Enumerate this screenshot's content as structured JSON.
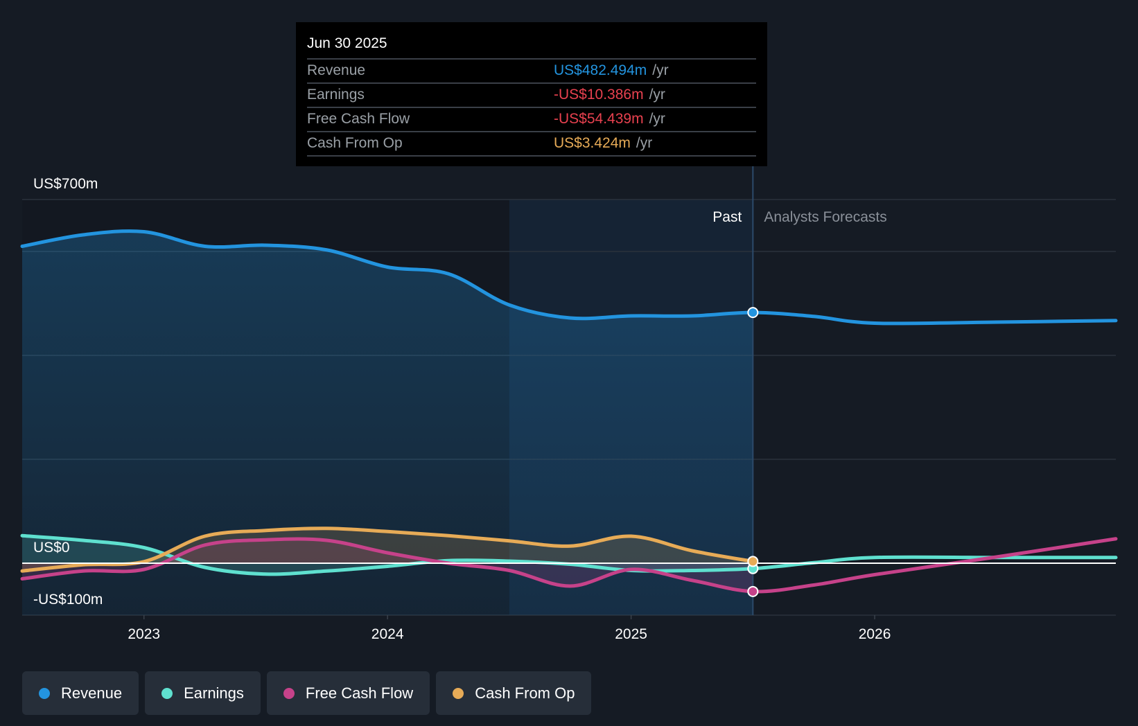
{
  "colors": {
    "revenue": "#2394df",
    "earnings": "#5fe0cf",
    "free_cash_flow": "#c6428a",
    "cash_from_op": "#e7ab57",
    "negative": "#e8414f",
    "background": "#151b24"
  },
  "tooltip": {
    "date": "Jun 30 2025",
    "rows": [
      {
        "label": "Revenue",
        "value": "US$482.494m",
        "unit": "/yr",
        "color": "#2394df"
      },
      {
        "label": "Earnings",
        "value": "-US$10.386m",
        "unit": "/yr",
        "color": "#e8414f"
      },
      {
        "label": "Free Cash Flow",
        "value": "-US$54.439m",
        "unit": "/yr",
        "color": "#e8414f"
      },
      {
        "label": "Cash From Op",
        "value": "US$3.424m",
        "unit": "/yr",
        "color": "#e7ab57"
      }
    ]
  },
  "legend": [
    {
      "label": "Revenue",
      "color": "#2394df"
    },
    {
      "label": "Earnings",
      "color": "#5fe0cf"
    },
    {
      "label": "Free Cash Flow",
      "color": "#c6428a"
    },
    {
      "label": "Cash From Op",
      "color": "#e7ab57"
    }
  ],
  "chart_data": {
    "type": "line",
    "title": "",
    "xlabel": "",
    "ylabel": "",
    "y_tick_labels": [
      "US$700m",
      "US$0",
      "-US$100m"
    ],
    "x_tick_labels": [
      "2023",
      "2024",
      "2025",
      "2026"
    ],
    "xlim": [
      2022.5,
      2026.99
    ],
    "ylim": [
      -100,
      700
    ],
    "grid": true,
    "legend_position": "bottom",
    "region_labels": {
      "past": "Past",
      "forecast": "Analysts Forecasts"
    },
    "past_end": 2025.5,
    "highlight_start": 2024.5,
    "series": [
      {
        "name": "Revenue",
        "key": "revenue",
        "x": [
          2022.5,
          2022.75,
          2023.0,
          2023.25,
          2023.5,
          2023.75,
          2024.0,
          2024.25,
          2024.5,
          2024.75,
          2025.0,
          2025.25,
          2025.5,
          2025.75,
          2026.0,
          2026.5,
          2026.99
        ],
        "values": [
          610,
          632,
          638,
          610,
          612,
          603,
          570,
          557,
          497,
          472,
          476,
          476,
          482.494,
          475,
          462,
          464,
          467
        ]
      },
      {
        "name": "Earnings",
        "key": "earnings",
        "x": [
          2022.5,
          2022.75,
          2023.0,
          2023.25,
          2023.5,
          2023.75,
          2024.0,
          2024.25,
          2024.5,
          2024.75,
          2025.0,
          2025.25,
          2025.5,
          2025.75,
          2026.0,
          2026.5,
          2026.99
        ],
        "values": [
          53,
          44,
          30,
          -8,
          -21,
          -15,
          -6,
          5,
          4,
          -2,
          -14,
          -14,
          -10.386,
          1,
          11,
          11,
          11
        ]
      },
      {
        "name": "Free Cash Flow",
        "key": "free_cash_flow",
        "x": [
          2022.5,
          2022.75,
          2023.0,
          2023.25,
          2023.5,
          2023.75,
          2024.0,
          2024.25,
          2024.5,
          2024.75,
          2025.0,
          2025.25,
          2025.5,
          2025.75,
          2026.0,
          2026.5,
          2026.99
        ],
        "values": [
          -30,
          -15,
          -12,
          35,
          45,
          44,
          20,
          0,
          -14,
          -44,
          -12,
          -33,
          -54.439,
          -42,
          -22,
          12,
          47
        ]
      },
      {
        "name": "Cash From Op",
        "key": "cash_from_op",
        "x": [
          2022.5,
          2022.75,
          2023.0,
          2023.25,
          2023.5,
          2023.75,
          2024.0,
          2024.25,
          2024.5,
          2024.75,
          2025.0,
          2025.25,
          2025.5
        ],
        "values": [
          -15,
          -3,
          3,
          52,
          63,
          67,
          61,
          53,
          43,
          33,
          52,
          24,
          3.424
        ]
      }
    ]
  }
}
